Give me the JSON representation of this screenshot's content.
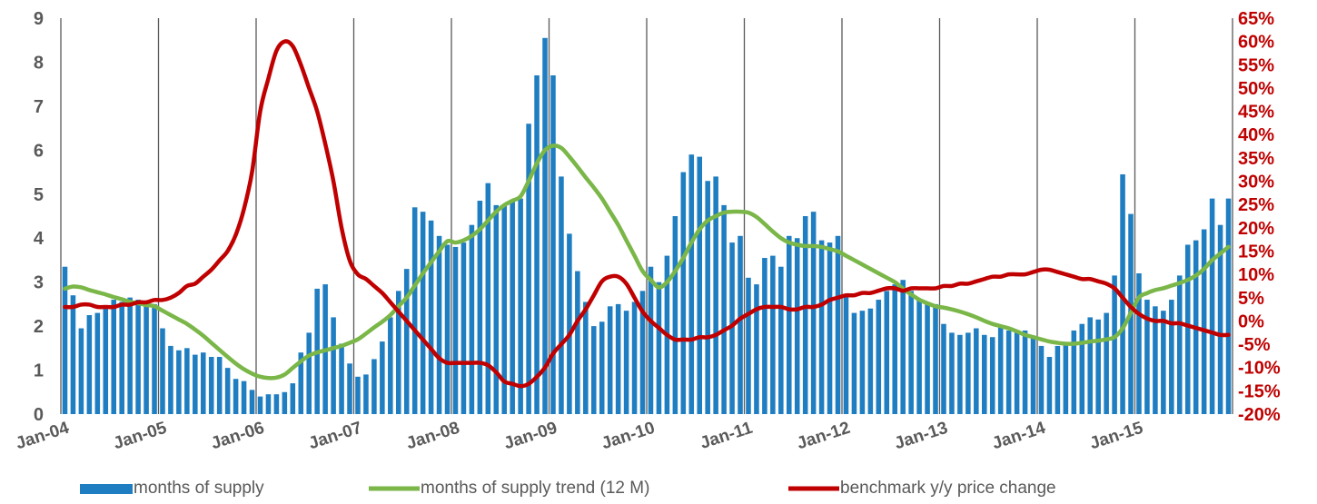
{
  "chart_data": {
    "type": "bar+line",
    "title": "",
    "colors": {
      "bars": "#1f7ec1",
      "trend": "#7ab648",
      "price": "#c00000",
      "grid": "#595959",
      "axis_text_left": "#595959",
      "axis_text_right": "#c00000"
    },
    "x_start": "2004-01",
    "x_end": "2015-12",
    "x_tick_labels": [
      "Jan-04",
      "Jan-05",
      "Jan-06",
      "Jan-07",
      "Jan-08",
      "Jan-09",
      "Jan-10",
      "Jan-11",
      "Jan-12",
      "Jan-13",
      "Jan-14",
      "Jan-15"
    ],
    "y_left": {
      "min": 0,
      "max": 9,
      "ticks": [
        "0",
        "1",
        "2",
        "3",
        "4",
        "5",
        "6",
        "7",
        "8",
        "9"
      ]
    },
    "y_right": {
      "min": -20,
      "max": 65,
      "ticks": [
        "-20%",
        "-15%",
        "-10%",
        "-5%",
        "0%",
        "5%",
        "10%",
        "15%",
        "20%",
        "25%",
        "30%",
        "35%",
        "40%",
        "45%",
        "50%",
        "55%",
        "60%",
        "65%"
      ]
    },
    "series": [
      {
        "name": "months of supply",
        "type": "bar",
        "axis": "left",
        "values": [
          3.35,
          2.7,
          1.95,
          2.25,
          2.3,
          2.4,
          2.6,
          2.55,
          2.65,
          2.6,
          2.55,
          2.5,
          1.95,
          1.55,
          1.45,
          1.5,
          1.35,
          1.4,
          1.3,
          1.3,
          1.05,
          0.8,
          0.75,
          0.55,
          0.4,
          0.45,
          0.45,
          0.5,
          0.7,
          1.4,
          1.85,
          2.85,
          2.95,
          2.2,
          1.6,
          1.15,
          0.85,
          0.9,
          1.25,
          1.65,
          2.2,
          2.8,
          3.3,
          4.7,
          4.6,
          4.4,
          4.05,
          3.85,
          3.8,
          3.9,
          4.3,
          4.85,
          5.25,
          4.75,
          4.75,
          4.85,
          4.9,
          6.6,
          7.7,
          8.55,
          7.7,
          5.4,
          4.1,
          3.25,
          2.55,
          2.0,
          2.1,
          2.45,
          2.5,
          2.35,
          2.55,
          2.8,
          3.35,
          3.0,
          3.6,
          4.5,
          5.5,
          5.9,
          5.85,
          5.3,
          5.4,
          4.75,
          3.9,
          4.05,
          3.1,
          2.95,
          3.55,
          3.6,
          3.35,
          4.05,
          4.0,
          4.5,
          4.6,
          3.95,
          3.9,
          4.05,
          2.7,
          2.3,
          2.35,
          2.4,
          2.6,
          2.8,
          2.95,
          3.05,
          2.8,
          2.6,
          2.55,
          2.5,
          2.05,
          1.85,
          1.8,
          1.85,
          1.95,
          1.8,
          1.75,
          2.0,
          1.9,
          1.85,
          1.9,
          1.75,
          1.55,
          1.3,
          1.55,
          1.6,
          1.9,
          2.05,
          2.2,
          2.15,
          2.3,
          3.15,
          5.45,
          4.55,
          3.2,
          2.6,
          2.45,
          2.35,
          2.6,
          3.15,
          3.85,
          3.95,
          4.2,
          4.9,
          4.3,
          4.9
        ]
      },
      {
        "name": "months of supply trend (12 M)",
        "type": "line",
        "axis": "left",
        "values": [
          2.85,
          2.9,
          2.88,
          2.82,
          2.77,
          2.72,
          2.66,
          2.61,
          2.55,
          2.52,
          2.48,
          2.45,
          2.35,
          2.25,
          2.15,
          2.05,
          1.92,
          1.78,
          1.62,
          1.46,
          1.3,
          1.15,
          1.02,
          0.92,
          0.85,
          0.82,
          0.83,
          0.9,
          1.05,
          1.2,
          1.33,
          1.4,
          1.45,
          1.5,
          1.55,
          1.62,
          1.7,
          1.83,
          1.97,
          2.1,
          2.25,
          2.45,
          2.65,
          2.92,
          3.2,
          3.45,
          3.7,
          3.93,
          3.9,
          3.95,
          4.05,
          4.2,
          4.4,
          4.6,
          4.75,
          4.85,
          4.95,
          5.3,
          5.7,
          6.0,
          6.1,
          6.05,
          5.85,
          5.62,
          5.38,
          5.15,
          4.9,
          4.6,
          4.3,
          3.95,
          3.6,
          3.25,
          3.05,
          2.88,
          3.0,
          3.25,
          3.55,
          3.9,
          4.2,
          4.4,
          4.5,
          4.58,
          4.6,
          4.6,
          4.58,
          4.48,
          4.32,
          4.15,
          4.0,
          3.9,
          3.85,
          3.82,
          3.82,
          3.8,
          3.75,
          3.7,
          3.6,
          3.5,
          3.4,
          3.3,
          3.2,
          3.1,
          3.0,
          2.85,
          2.72,
          2.6,
          2.52,
          2.45,
          2.42,
          2.38,
          2.33,
          2.27,
          2.2,
          2.12,
          2.05,
          2.0,
          1.95,
          1.88,
          1.8,
          1.75,
          1.7,
          1.65,
          1.62,
          1.6,
          1.6,
          1.62,
          1.65,
          1.67,
          1.7,
          1.75,
          1.95,
          2.3,
          2.65,
          2.75,
          2.82,
          2.86,
          2.92,
          2.98,
          3.05,
          3.15,
          3.3,
          3.5,
          3.65,
          3.8
        ]
      },
      {
        "name": "benchmark y/y  price change",
        "type": "line",
        "axis": "right",
        "values": [
          3,
          3,
          3.5,
          3.5,
          3,
          3,
          3,
          3.5,
          3.5,
          4,
          4,
          4.5,
          4.5,
          5,
          6,
          7.5,
          8,
          9.5,
          11,
          13,
          15,
          18.5,
          24,
          32,
          45,
          52,
          58,
          60,
          59,
          55,
          50,
          45,
          38,
          30,
          20,
          13,
          10,
          9,
          7.5,
          6,
          4,
          2,
          0,
          -2,
          -4,
          -6,
          -8,
          -9,
          -9,
          -9,
          -9,
          -9,
          -9.5,
          -11,
          -13,
          -13.5,
          -14,
          -13.5,
          -12,
          -10,
          -7,
          -5,
          -3,
          0,
          2.5,
          5.5,
          8.5,
          9.5,
          9.5,
          8,
          5,
          2,
          0,
          -1.5,
          -3,
          -4,
          -4,
          -4,
          -3.5,
          -3.5,
          -3,
          -2,
          -1,
          0.5,
          1.5,
          2.5,
          3,
          3,
          3,
          2.5,
          2.5,
          3,
          3,
          3.5,
          4.5,
          5,
          5.5,
          5.5,
          6,
          6,
          6.5,
          7,
          7,
          6.5,
          7,
          7,
          7,
          7,
          7.5,
          7.5,
          8,
          8,
          8.5,
          9,
          9.5,
          9.5,
          10,
          10,
          10,
          10.5,
          11,
          11,
          10.5,
          10,
          9.5,
          9,
          9,
          8.5,
          8,
          7,
          5,
          3,
          1.5,
          0.5,
          0,
          0,
          -0.5,
          -0.5,
          -1,
          -1.5,
          -2,
          -2.5,
          -3,
          -3
        ]
      }
    ],
    "legend": {
      "position": "bottom",
      "items": [
        "months of supply",
        "months of supply trend (12 M)",
        "benchmark y/y  price change"
      ]
    }
  }
}
